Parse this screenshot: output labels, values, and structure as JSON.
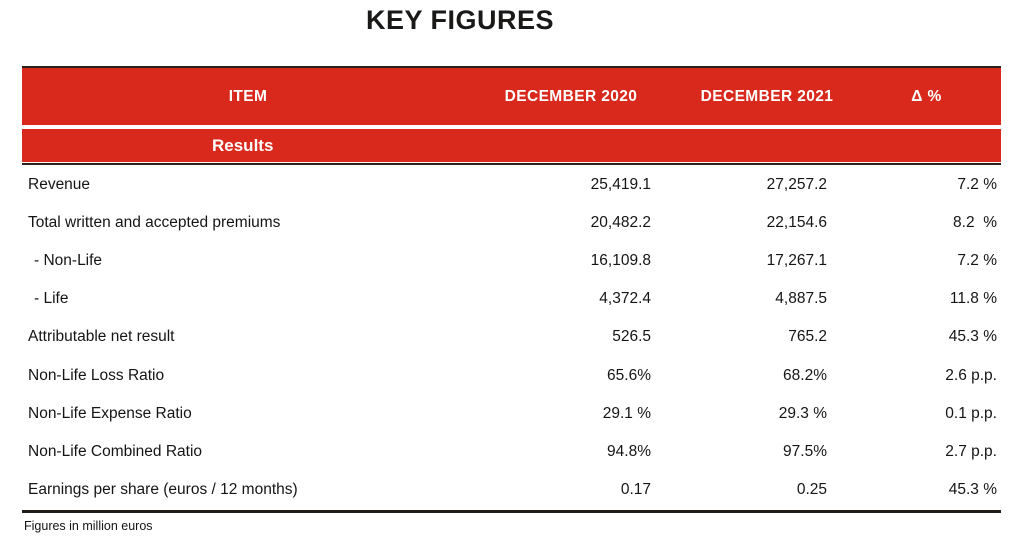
{
  "title": "KEY FIGURES",
  "footnote": "Figures in million euros",
  "colors": {
    "brand_red": "#d8291c",
    "rule_dark": "#2a211e"
  },
  "table": {
    "columns": [
      {
        "label": "ITEM"
      },
      {
        "label": "DECEMBER 2020"
      },
      {
        "label": "DECEMBER 2021"
      },
      {
        "label": "Δ %"
      }
    ],
    "section_label": "Results",
    "rows": [
      {
        "item": "Revenue",
        "dec2020": "25,419.1",
        "dec2021": "27,257.2",
        "delta": "7.2 %",
        "indent": false
      },
      {
        "item": "Total written and accepted premiums",
        "dec2020": "20,482.2",
        "dec2021": "22,154.6",
        "delta": "8.2  %",
        "indent": false
      },
      {
        "item": "- Non-Life",
        "dec2020": "16,109.8",
        "dec2021": "17,267.1",
        "delta": "7.2 %",
        "indent": true
      },
      {
        "item": "- Life",
        "dec2020": "4,372.4",
        "dec2021": "4,887.5",
        "delta": "11.8 %",
        "indent": true
      },
      {
        "item": "Attributable net result",
        "dec2020": "526.5",
        "dec2021": "765.2",
        "delta": "45.3 %",
        "indent": false
      },
      {
        "item": "Non-Life Loss Ratio",
        "dec2020": "65.6%",
        "dec2021": "68.2%",
        "delta": "2.6 p.p.",
        "indent": false
      },
      {
        "item": "Non-Life Expense Ratio",
        "dec2020": "29.1 %",
        "dec2021": "29.3 %",
        "delta": "0.1 p.p.",
        "indent": false
      },
      {
        "item": "Non-Life Combined Ratio",
        "dec2020": "94.8%",
        "dec2021": "97.5%",
        "delta": "2.7 p.p.",
        "indent": false
      },
      {
        "item": "Earnings per share (euros / 12 months)",
        "dec2020": "0.17",
        "dec2021": "0.25",
        "delta": "45.3 %",
        "indent": false
      }
    ]
  }
}
